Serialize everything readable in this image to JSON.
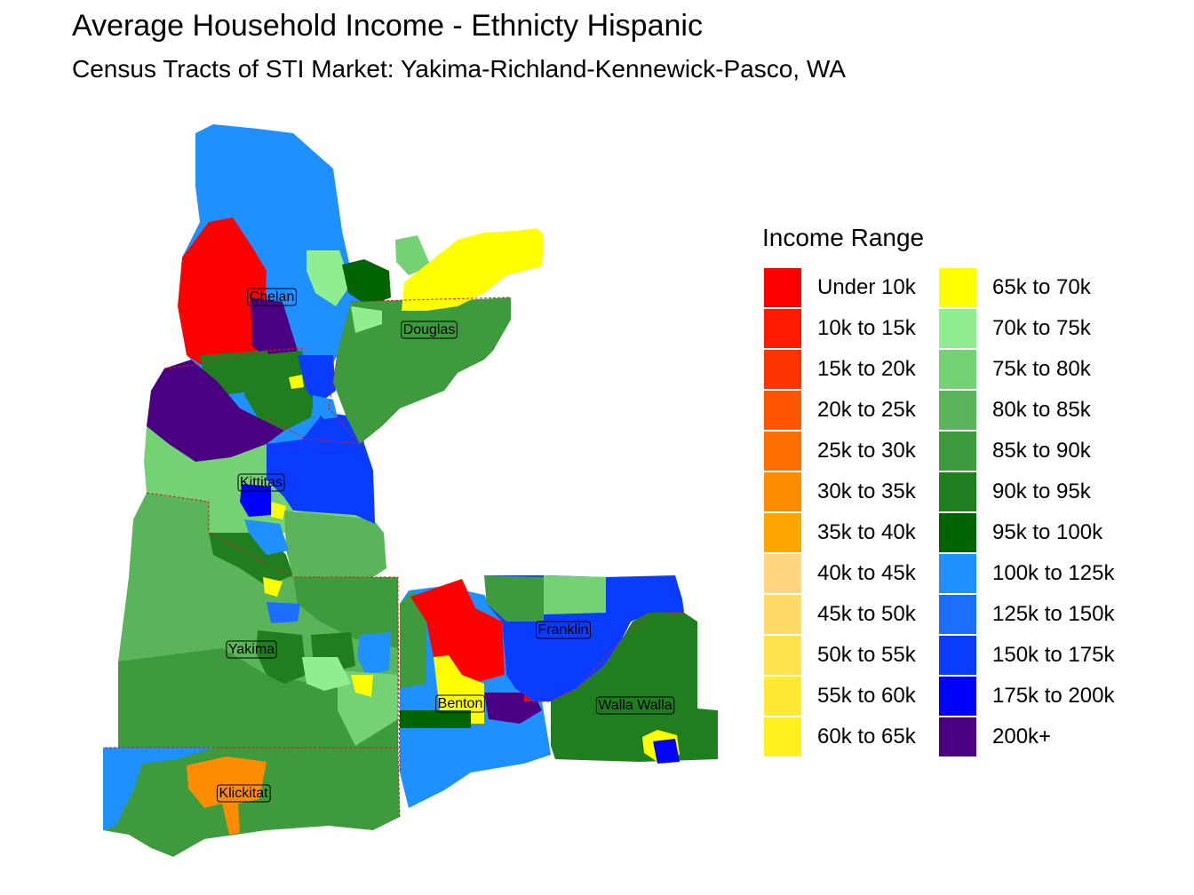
{
  "title": "Average Household Income - Ethnicty Hispanic",
  "subtitle": "Census Tracts of STI Market: Yakima-Richland-Kennewick-Pasco, WA",
  "legend": {
    "title": "Income Range",
    "items": [
      {
        "label": "Under 10k",
        "color": "#FF0000"
      },
      {
        "label": "10k to 15k",
        "color": "#FF1A00"
      },
      {
        "label": "15k to 20k",
        "color": "#FF3300"
      },
      {
        "label": "20k to 25k",
        "color": "#FF5500"
      },
      {
        "label": "25k to 30k",
        "color": "#FF6F00"
      },
      {
        "label": "30k to 35k",
        "color": "#FF8C00"
      },
      {
        "label": "35k to 40k",
        "color": "#FFA500"
      },
      {
        "label": "40k to 45k",
        "color": "#FFD580"
      },
      {
        "label": "45k to 50k",
        "color": "#FFDA66"
      },
      {
        "label": "50k to 55k",
        "color": "#FFE34D"
      },
      {
        "label": "55k to 60k",
        "color": "#FFEA33"
      },
      {
        "label": "60k to 65k",
        "color": "#FFF01F"
      },
      {
        "label": "65k to 70k",
        "color": "#FFFF00"
      },
      {
        "label": "70k to 75k",
        "color": "#90EE90"
      },
      {
        "label": "75k to 80k",
        "color": "#74D274"
      },
      {
        "label": "80k to 85k",
        "color": "#5AB55A"
      },
      {
        "label": "85k to 90k",
        "color": "#3D9B3D"
      },
      {
        "label": "90k to 95k",
        "color": "#1F7F1F"
      },
      {
        "label": "95k to 100k",
        "color": "#006400"
      },
      {
        "label": "100k to 125k",
        "color": "#1E90FF"
      },
      {
        "label": "125k to 150k",
        "color": "#1C6EFF"
      },
      {
        "label": "150k to 175k",
        "color": "#0A3CFF"
      },
      {
        "label": "175k to 200k",
        "color": "#0000FF"
      },
      {
        "label": "200k+",
        "color": "#4B0082"
      }
    ]
  },
  "counties": [
    "Chelan",
    "Douglas",
    "Kittitas",
    "Yakima",
    "Franklin",
    "Benton",
    "Walla Walla",
    "Klickitat"
  ]
}
